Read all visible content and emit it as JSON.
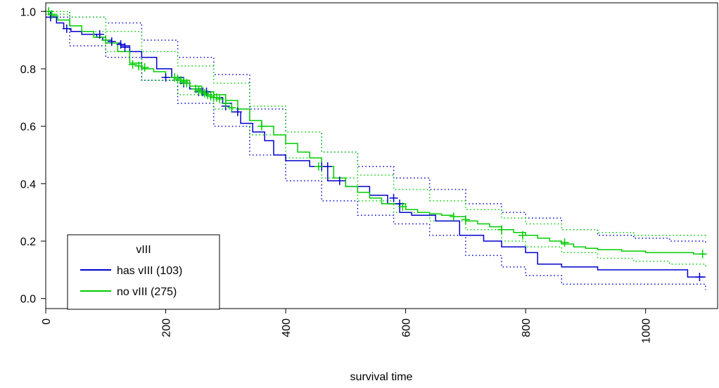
{
  "chart_data": {
    "type": "line",
    "title": "",
    "xlabel": "survival time",
    "ylabel": "",
    "xlim": [
      0,
      1120
    ],
    "ylim": [
      -0.035,
      1.03
    ],
    "x_ticks": [
      0,
      200,
      400,
      600,
      800,
      1000
    ],
    "x_tick_labels": [
      "0",
      "200",
      "400",
      "600",
      "800",
      "1000"
    ],
    "y_ticks": [
      0.0,
      0.2,
      0.4,
      0.6,
      0.8,
      1.0
    ],
    "y_tick_labels": [
      "0.0",
      "0.2",
      "0.4",
      "0.6",
      "0.8",
      "1.0"
    ],
    "grid": false,
    "legend": {
      "title": "vIII",
      "placement": "bottom-left",
      "entries": [
        "has vIII (103)",
        "no vIII (275)"
      ]
    },
    "series": [
      {
        "name": "has vIII (103)",
        "color": "#0000cc",
        "step": true,
        "x": [
          0,
          8,
          18,
          30,
          42,
          60,
          85,
          95,
          110,
          125,
          140,
          160,
          185,
          210,
          230,
          240,
          260,
          280,
          295,
          310,
          325,
          345,
          365,
          380,
          400,
          440,
          470,
          500,
          540,
          570,
          590,
          610,
          650,
          690,
          730,
          760,
          800,
          820,
          860,
          920,
          960,
          1070,
          1100
        ],
        "y": [
          1.0,
          0.98,
          0.96,
          0.94,
          0.93,
          0.92,
          0.91,
          0.9,
          0.89,
          0.88,
          0.86,
          0.84,
          0.8,
          0.77,
          0.75,
          0.73,
          0.72,
          0.7,
          0.68,
          0.65,
          0.61,
          0.58,
          0.55,
          0.5,
          0.48,
          0.46,
          0.41,
          0.39,
          0.36,
          0.33,
          0.3,
          0.29,
          0.27,
          0.22,
          0.2,
          0.18,
          0.16,
          0.12,
          0.11,
          0.1,
          0.1,
          0.075,
          0.075
        ],
        "censor_x": [
          8,
          35,
          90,
          110,
          125,
          132,
          200,
          230,
          255,
          262,
          268,
          300,
          320,
          460,
          470,
          490,
          580,
          590,
          1090
        ],
        "censor_y": [
          0.98,
          0.94,
          0.92,
          0.895,
          0.885,
          0.875,
          0.77,
          0.75,
          0.72,
          0.72,
          0.72,
          0.67,
          0.65,
          0.46,
          0.46,
          0.41,
          0.35,
          0.33,
          0.075
        ],
        "ci_upper_x": [
          0,
          40,
          100,
          160,
          220,
          280,
          340,
          400,
          460,
          520,
          580,
          640,
          700,
          760,
          800,
          860,
          920,
          980,
          1040,
          1100
        ],
        "ci_upper": [
          1.0,
          0.98,
          0.96,
          0.9,
          0.84,
          0.78,
          0.66,
          0.58,
          0.51,
          0.46,
          0.42,
          0.38,
          0.33,
          0.3,
          0.28,
          0.24,
          0.22,
          0.21,
          0.2,
          0.19
        ],
        "ci_lower_x": [
          0,
          40,
          100,
          160,
          220,
          280,
          340,
          400,
          460,
          520,
          580,
          640,
          700,
          760,
          800,
          860,
          920,
          980,
          1040,
          1100
        ],
        "ci_lower": [
          0.98,
          0.88,
          0.84,
          0.76,
          0.68,
          0.6,
          0.5,
          0.41,
          0.34,
          0.29,
          0.26,
          0.22,
          0.15,
          0.11,
          0.08,
          0.05,
          0.05,
          0.05,
          0.05,
          0.03
        ]
      },
      {
        "name": "no vIII (275)",
        "color": "#00cc00",
        "step": true,
        "x": [
          0,
          10,
          20,
          40,
          60,
          80,
          100,
          120,
          140,
          160,
          180,
          200,
          220,
          240,
          260,
          280,
          300,
          320,
          340,
          360,
          380,
          400,
          420,
          440,
          460,
          480,
          500,
          520,
          540,
          560,
          580,
          600,
          620,
          640,
          660,
          680,
          700,
          720,
          740,
          760,
          780,
          800,
          820,
          840,
          860,
          880,
          900,
          920,
          960,
          1000,
          1040,
          1080,
          1100
        ],
        "y": [
          1.0,
          0.985,
          0.97,
          0.95,
          0.93,
          0.91,
          0.89,
          0.86,
          0.82,
          0.8,
          0.79,
          0.77,
          0.76,
          0.74,
          0.72,
          0.71,
          0.69,
          0.66,
          0.62,
          0.6,
          0.57,
          0.54,
          0.51,
          0.49,
          0.46,
          0.42,
          0.39,
          0.37,
          0.35,
          0.33,
          0.33,
          0.31,
          0.3,
          0.295,
          0.29,
          0.285,
          0.27,
          0.26,
          0.25,
          0.24,
          0.23,
          0.22,
          0.21,
          0.2,
          0.19,
          0.18,
          0.175,
          0.17,
          0.165,
          0.16,
          0.16,
          0.155,
          0.155
        ],
        "censor_x": [
          5,
          10,
          100,
          145,
          155,
          165,
          215,
          220,
          225,
          230,
          235,
          250,
          255,
          260,
          265,
          270,
          275,
          280,
          285,
          290,
          300,
          310,
          360,
          455,
          595,
          680,
          700,
          760,
          795,
          865,
          1095
        ],
        "censor_y": [
          1.0,
          0.99,
          0.9,
          0.815,
          0.81,
          0.805,
          0.77,
          0.765,
          0.76,
          0.755,
          0.75,
          0.73,
          0.725,
          0.72,
          0.715,
          0.71,
          0.705,
          0.7,
          0.7,
          0.695,
          0.68,
          0.665,
          0.6,
          0.46,
          0.32,
          0.285,
          0.275,
          0.24,
          0.22,
          0.195,
          0.155
        ],
        "ci_upper_x": [
          0,
          40,
          100,
          160,
          220,
          280,
          340,
          400,
          460,
          520,
          580,
          640,
          700,
          760,
          800,
          860,
          920,
          980,
          1040,
          1100
        ],
        "ci_upper": [
          1.0,
          0.98,
          0.93,
          0.86,
          0.81,
          0.75,
          0.67,
          0.58,
          0.51,
          0.43,
          0.38,
          0.34,
          0.31,
          0.28,
          0.26,
          0.24,
          0.23,
          0.22,
          0.22,
          0.21
        ],
        "ci_lower_x": [
          0,
          40,
          100,
          160,
          220,
          280,
          340,
          400,
          460,
          520,
          580,
          640,
          700,
          760,
          800,
          860,
          920,
          980,
          1040,
          1100
        ],
        "ci_lower": [
          0.99,
          0.93,
          0.86,
          0.76,
          0.71,
          0.66,
          0.57,
          0.49,
          0.42,
          0.34,
          0.3,
          0.27,
          0.24,
          0.2,
          0.18,
          0.16,
          0.14,
          0.13,
          0.12,
          0.11
        ]
      }
    ]
  }
}
